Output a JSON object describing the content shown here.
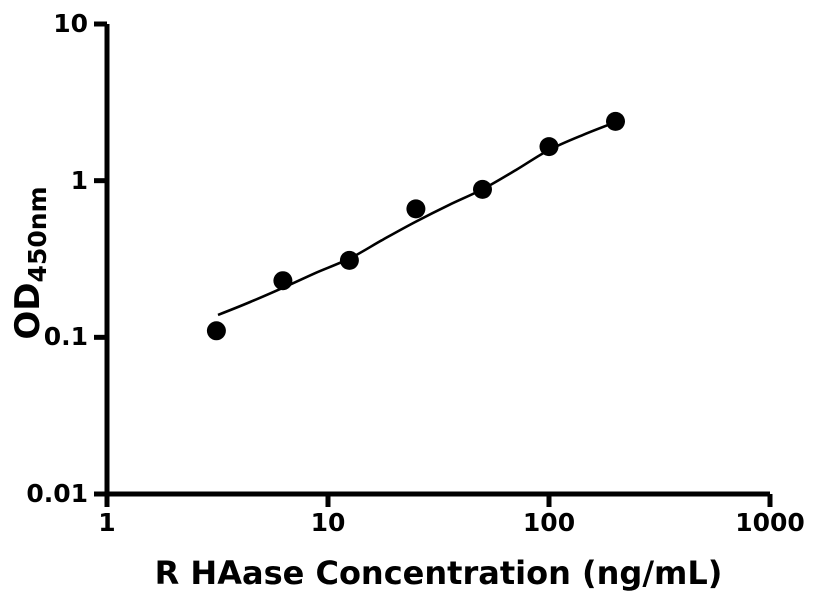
{
  "figure": {
    "background_color": "#ffffff",
    "foreground_color": "#000000"
  },
  "chart_data": {
    "type": "scatter",
    "title": "",
    "xlabel": "R HAase Concentration (ng/mL)",
    "ylabel_main": "OD",
    "ylabel_sub": "450nm",
    "x_scale": "log",
    "y_scale": "log",
    "xlim": [
      1,
      1000
    ],
    "ylim": [
      0.01,
      10
    ],
    "grid": false,
    "legend": null,
    "x_ticks": [
      {
        "value": 1,
        "label": "1"
      },
      {
        "value": 10,
        "label": "10"
      },
      {
        "value": 100,
        "label": "100"
      },
      {
        "value": 1000,
        "label": "1000"
      }
    ],
    "y_ticks": [
      {
        "value": 10,
        "label": "10"
      },
      {
        "value": 1,
        "label": "1"
      },
      {
        "value": 0.1,
        "label": "0.1"
      },
      {
        "value": 0.01,
        "label": "0.01"
      }
    ],
    "series": [
      {
        "name": "fit-curve",
        "type": "line",
        "color": "#000000",
        "stroke_width": 2.6,
        "points": [
          [
            3.18,
            0.139
          ],
          [
            4.44,
            0.168
          ],
          [
            6.25,
            0.207
          ],
          [
            8.82,
            0.258
          ],
          [
            12.6,
            0.32
          ],
          [
            17.7,
            0.42
          ],
          [
            24.8,
            0.545
          ],
          [
            35.3,
            0.7
          ],
          [
            50.3,
            0.885
          ],
          [
            70.9,
            1.17
          ],
          [
            100,
            1.57
          ],
          [
            142.5,
            1.96
          ],
          [
            201,
            2.37
          ]
        ]
      },
      {
        "name": "standard-points",
        "type": "scatter",
        "marker": "circle",
        "marker_radius": 9.5,
        "color": "#000000",
        "points": [
          [
            3.125,
            0.11
          ],
          [
            6.25,
            0.23
          ],
          [
            12.5,
            0.31
          ],
          [
            25,
            0.66
          ],
          [
            50,
            0.88
          ],
          [
            100,
            1.65
          ],
          [
            200,
            2.39
          ]
        ]
      }
    ]
  }
}
